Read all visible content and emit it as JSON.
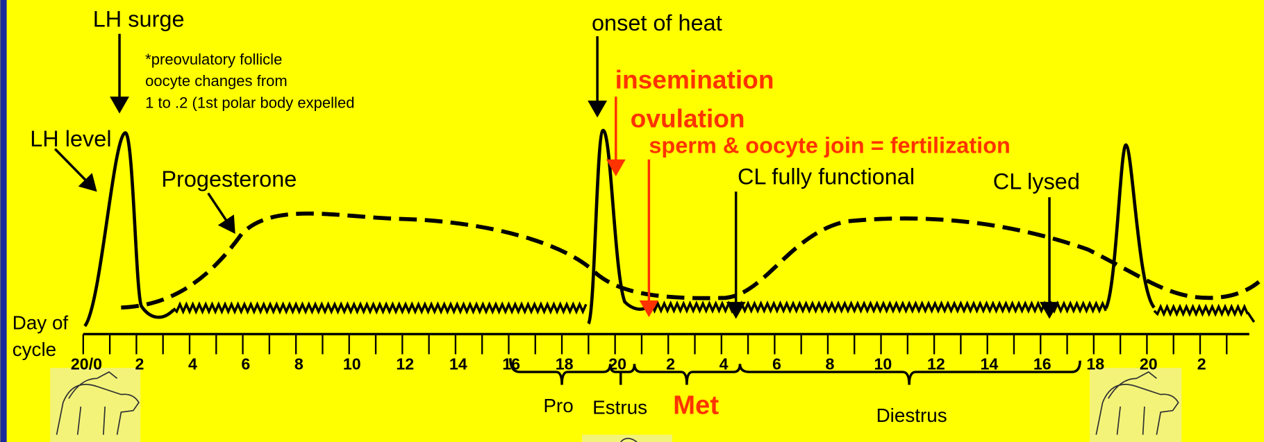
{
  "labels": {
    "lh_surge": "LH surge",
    "lh_level": "LH level",
    "progesterone": "Progesterone",
    "onset_of_heat": "onset of heat",
    "insemination": "insemination",
    "ovulation": "ovulation",
    "fertilization": "sperm & oocyte join = fertilization",
    "cl_functional": "CL fully functional",
    "cl_lysed": "CL lysed"
  },
  "note": [
    "*preovulatory follicle",
    "oocyte changes from",
    "1 to .2 (1st polar body expelled"
  ],
  "axis": {
    "title": [
      "Day of",
      "cycle"
    ],
    "tick_labels": [
      "20/0",
      "2",
      "4",
      "6",
      "8",
      "10",
      "12",
      "14",
      "16",
      "18",
      "20",
      "2",
      "4",
      "6",
      "8",
      "10",
      "12",
      "14",
      "16",
      "18",
      "20",
      "2"
    ]
  },
  "phases": [
    "Pro",
    "Estrus",
    "Met",
    "Diestrus"
  ]
}
